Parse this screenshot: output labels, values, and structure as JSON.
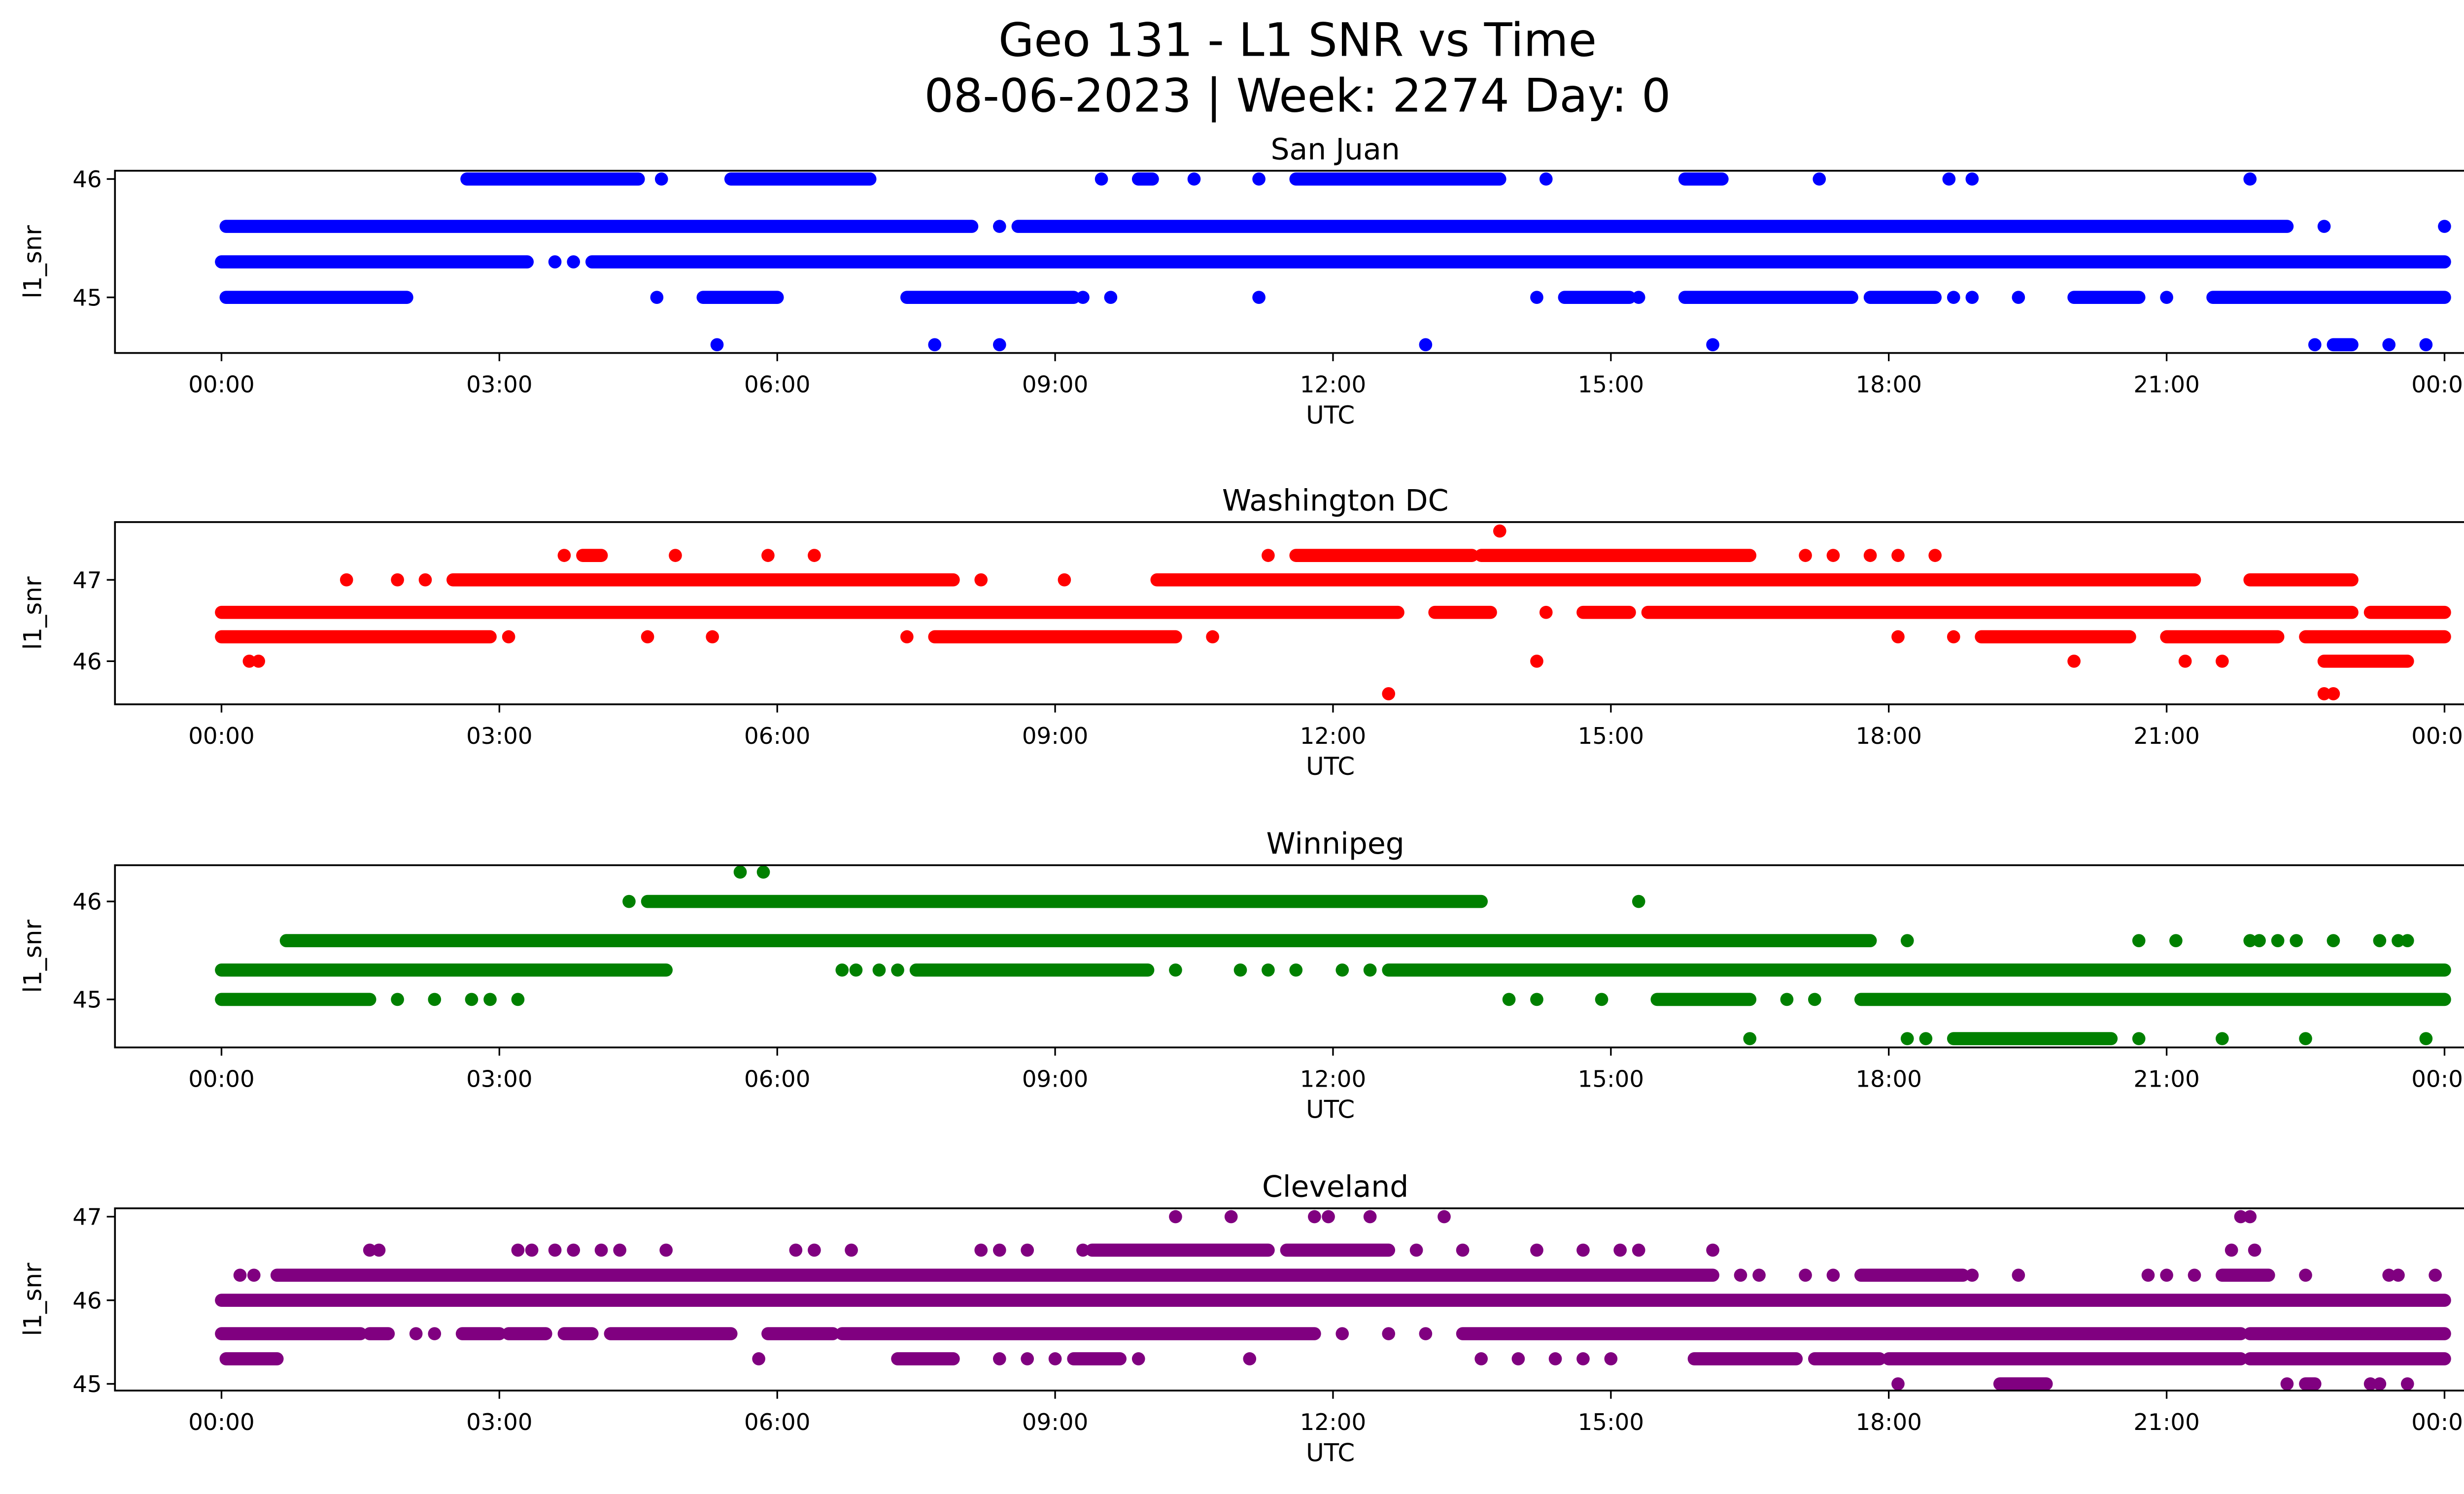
{
  "chart_data": {
    "type": "scatter",
    "title_line1": "Geo 131 - L1 SNR vs Time",
    "title_line2": "08-06-2023 | Week: 2274 Day: 0",
    "xlabel": "UTC",
    "ylabel": "l1_snr",
    "xlim_hours": [
      -1.15,
      25.2
    ],
    "xticks": [
      {
        "h": 0,
        "label": "00:00"
      },
      {
        "h": 3,
        "label": "03:00"
      },
      {
        "h": 6,
        "label": "06:00"
      },
      {
        "h": 9,
        "label": "09:00"
      },
      {
        "h": 12,
        "label": "12:00"
      },
      {
        "h": 15,
        "label": "15:00"
      },
      {
        "h": 18,
        "label": "18:00"
      },
      {
        "h": 21,
        "label": "21:00"
      },
      {
        "h": 24,
        "label": "00:00"
      }
    ],
    "note": "points: single samples (hours UTC); runs: [start,end] hour ranges of continuous samples",
    "panels": [
      {
        "title": "San Juan",
        "color": "#0000ff",
        "ylim": [
          44.53,
          46.07
        ],
        "yticks": [
          {
            "v": 45,
            "label": "45"
          },
          {
            "v": 46,
            "label": "46"
          }
        ],
        "levels": [
          {
            "y": 46.0,
            "items": [
              [
                2.65,
                4.5
              ],
              4.75,
              [
                5.5,
                7.0
              ],
              9.5,
              [
                9.9,
                10.05
              ],
              10.5,
              11.2,
              [
                11.6,
                13.8
              ],
              14.3,
              [
                15.8,
                16.2
              ],
              17.25,
              18.65,
              18.9,
              21.9
            ]
          },
          {
            "y": 45.6,
            "items": [
              [
                0.05,
                8.1
              ],
              8.4,
              [
                8.6,
                22.3
              ],
              22.7,
              24.0
            ]
          },
          {
            "y": 45.3,
            "items": [
              [
                0,
                3.3
              ],
              3.6,
              3.8,
              [
                4.0,
                24.0
              ]
            ]
          },
          {
            "y": 45.0,
            "items": [
              [
                0.05,
                2.0
              ],
              4.7,
              [
                5.2,
                6.0
              ],
              [
                7.4,
                9.2
              ],
              9.3,
              9.6,
              11.2,
              14.2,
              [
                14.5,
                15.2
              ],
              15.3,
              [
                15.8,
                17.6
              ],
              [
                17.8,
                18.5
              ],
              18.7,
              18.9,
              19.4,
              [
                20.0,
                20.7
              ],
              21.0,
              [
                21.5,
                24.0
              ]
            ]
          },
          {
            "y": 44.6,
            "items": [
              5.35,
              7.7,
              8.4,
              13.0,
              16.1,
              22.6,
              [
                22.8,
                23.0
              ],
              23.4,
              23.8
            ]
          }
        ]
      },
      {
        "title": "Washington DC",
        "color": "#ff0000",
        "ylim": [
          45.47,
          47.71
        ],
        "yticks": [
          {
            "v": 46,
            "label": "46"
          },
          {
            "v": 47,
            "label": "47"
          }
        ],
        "levels": [
          {
            "y": 47.6,
            "items": [
              13.8
            ]
          },
          {
            "y": 47.3,
            "items": [
              3.7,
              [
                3.9,
                4.1
              ],
              4.9,
              5.9,
              6.4,
              11.3,
              [
                11.6,
                13.5
              ],
              [
                13.6,
                16.5
              ],
              17.1,
              17.4,
              17.8,
              18.1,
              18.5
            ]
          },
          {
            "y": 47.0,
            "items": [
              1.35,
              1.9,
              2.2,
              [
                2.5,
                7.9
              ],
              8.2,
              9.1,
              [
                10.1,
                21.3
              ],
              [
                21.9,
                23.0
              ]
            ]
          },
          {
            "y": 46.6,
            "items": [
              [
                0,
                12.7
              ],
              [
                13.1,
                13.7
              ],
              14.3,
              [
                14.7,
                15.2
              ],
              [
                15.4,
                23.0
              ],
              [
                23.2,
                24.0
              ]
            ]
          },
          {
            "y": 46.3,
            "items": [
              [
                0,
                2.9
              ],
              3.1,
              4.6,
              5.3,
              7.4,
              [
                7.7,
                10.3
              ],
              10.7,
              18.1,
              18.7,
              [
                19.0,
                20.6
              ],
              [
                21.0,
                22.2
              ],
              [
                22.5,
                24.0
              ]
            ]
          },
          {
            "y": 46.0,
            "items": [
              0.3,
              0.4,
              14.2,
              20.0,
              21.2,
              21.6,
              [
                22.7,
                23.6
              ]
            ]
          },
          {
            "y": 45.6,
            "items": [
              12.6,
              22.7,
              22.8
            ]
          }
        ]
      },
      {
        "title": "Winnipeg",
        "color": "#008000",
        "ylim": [
          44.51,
          46.37
        ],
        "yticks": [
          {
            "v": 45,
            "label": "45"
          },
          {
            "v": 46,
            "label": "46"
          }
        ],
        "levels": [
          {
            "y": 46.3,
            "items": [
              5.6,
              5.85
            ]
          },
          {
            "y": 46.0,
            "items": [
              4.4,
              [
                4.6,
                13.6
              ],
              15.3
            ]
          },
          {
            "y": 45.6,
            "items": [
              [
                0.7,
                17.8
              ],
              18.2,
              20.7,
              21.1,
              21.9,
              22.0,
              22.2,
              22.4,
              22.8,
              23.3,
              23.5,
              23.6
            ]
          },
          {
            "y": 45.3,
            "items": [
              [
                0,
                4.8
              ],
              6.7,
              6.85,
              7.1,
              7.3,
              [
                7.5,
                10.0
              ],
              10.3,
              11.0,
              11.3,
              11.6,
              12.1,
              12.4,
              [
                12.6,
                24.0
              ]
            ]
          },
          {
            "y": 45.0,
            "items": [
              [
                0,
                1.6
              ],
              1.9,
              2.3,
              2.7,
              2.9,
              3.2,
              13.9,
              14.2,
              14.9,
              [
                15.5,
                16.5
              ],
              16.9,
              17.2,
              [
                17.7,
                24.0
              ]
            ]
          },
          {
            "y": 44.6,
            "items": [
              16.5,
              18.2,
              18.4,
              [
                18.7,
                20.4
              ],
              20.7,
              21.6,
              22.5,
              23.8
            ]
          }
        ]
      },
      {
        "title": "Cleveland",
        "color": "#800080",
        "ylim": [
          44.92,
          47.1
        ],
        "yticks": [
          {
            "v": 45,
            "label": "45"
          },
          {
            "v": 46,
            "label": "46"
          },
          {
            "v": 47,
            "label": "47"
          }
        ],
        "levels": [
          {
            "y": 47.0,
            "items": [
              10.3,
              10.9,
              11.8,
              11.95,
              12.4,
              13.2,
              21.8,
              21.9
            ]
          },
          {
            "y": 46.6,
            "items": [
              1.6,
              1.7,
              3.2,
              3.35,
              3.6,
              3.8,
              4.1,
              4.3,
              4.8,
              6.2,
              6.4,
              6.8,
              8.2,
              8.4,
              8.7,
              9.3,
              [
                9.4,
                11.3
              ],
              [
                11.5,
                12.6
              ],
              12.9,
              13.4,
              14.2,
              14.7,
              15.1,
              15.3,
              16.1,
              21.7,
              21.95
            ]
          },
          {
            "y": 46.3,
            "items": [
              0.2,
              0.35,
              [
                0.6,
                16.1
              ],
              16.4,
              16.6,
              17.1,
              17.4,
              [
                17.7,
                18.8
              ],
              18.9,
              19.4,
              20.8,
              21.0,
              21.3,
              [
                21.6,
                22.1
              ],
              22.5,
              23.4,
              23.5,
              23.9
            ]
          },
          {
            "y": 46.0,
            "items": [
              [
                0,
                24.0
              ]
            ]
          },
          {
            "y": 45.6,
            "items": [
              [
                0,
                1.5
              ],
              [
                1.6,
                1.8
              ],
              2.1,
              2.3,
              [
                2.6,
                3.0
              ],
              [
                3.1,
                3.5
              ],
              [
                3.7,
                4.0
              ],
              [
                4.2,
                5.5
              ],
              [
                5.9,
                6.6
              ],
              [
                6.7,
                11.8
              ],
              12.1,
              12.6,
              13.0,
              [
                13.4,
                21.8
              ],
              [
                21.9,
                24.0
              ]
            ]
          },
          {
            "y": 45.3,
            "items": [
              [
                0.05,
                0.6
              ],
              5.8,
              [
                7.3,
                7.9
              ],
              8.4,
              8.7,
              9.0,
              [
                9.2,
                9.7
              ],
              9.9,
              11.1,
              13.6,
              14.0,
              14.4,
              14.7,
              15.0,
              [
                15.9,
                17.0
              ],
              [
                17.2,
                17.9
              ],
              [
                18.0,
                21.8
              ],
              [
                21.9,
                24.0
              ]
            ]
          },
          {
            "y": 45.0,
            "items": [
              18.1,
              [
                19.2,
                19.7
              ],
              22.3,
              [
                22.5,
                22.6
              ],
              23.2,
              23.3,
              23.6
            ]
          }
        ]
      }
    ]
  }
}
